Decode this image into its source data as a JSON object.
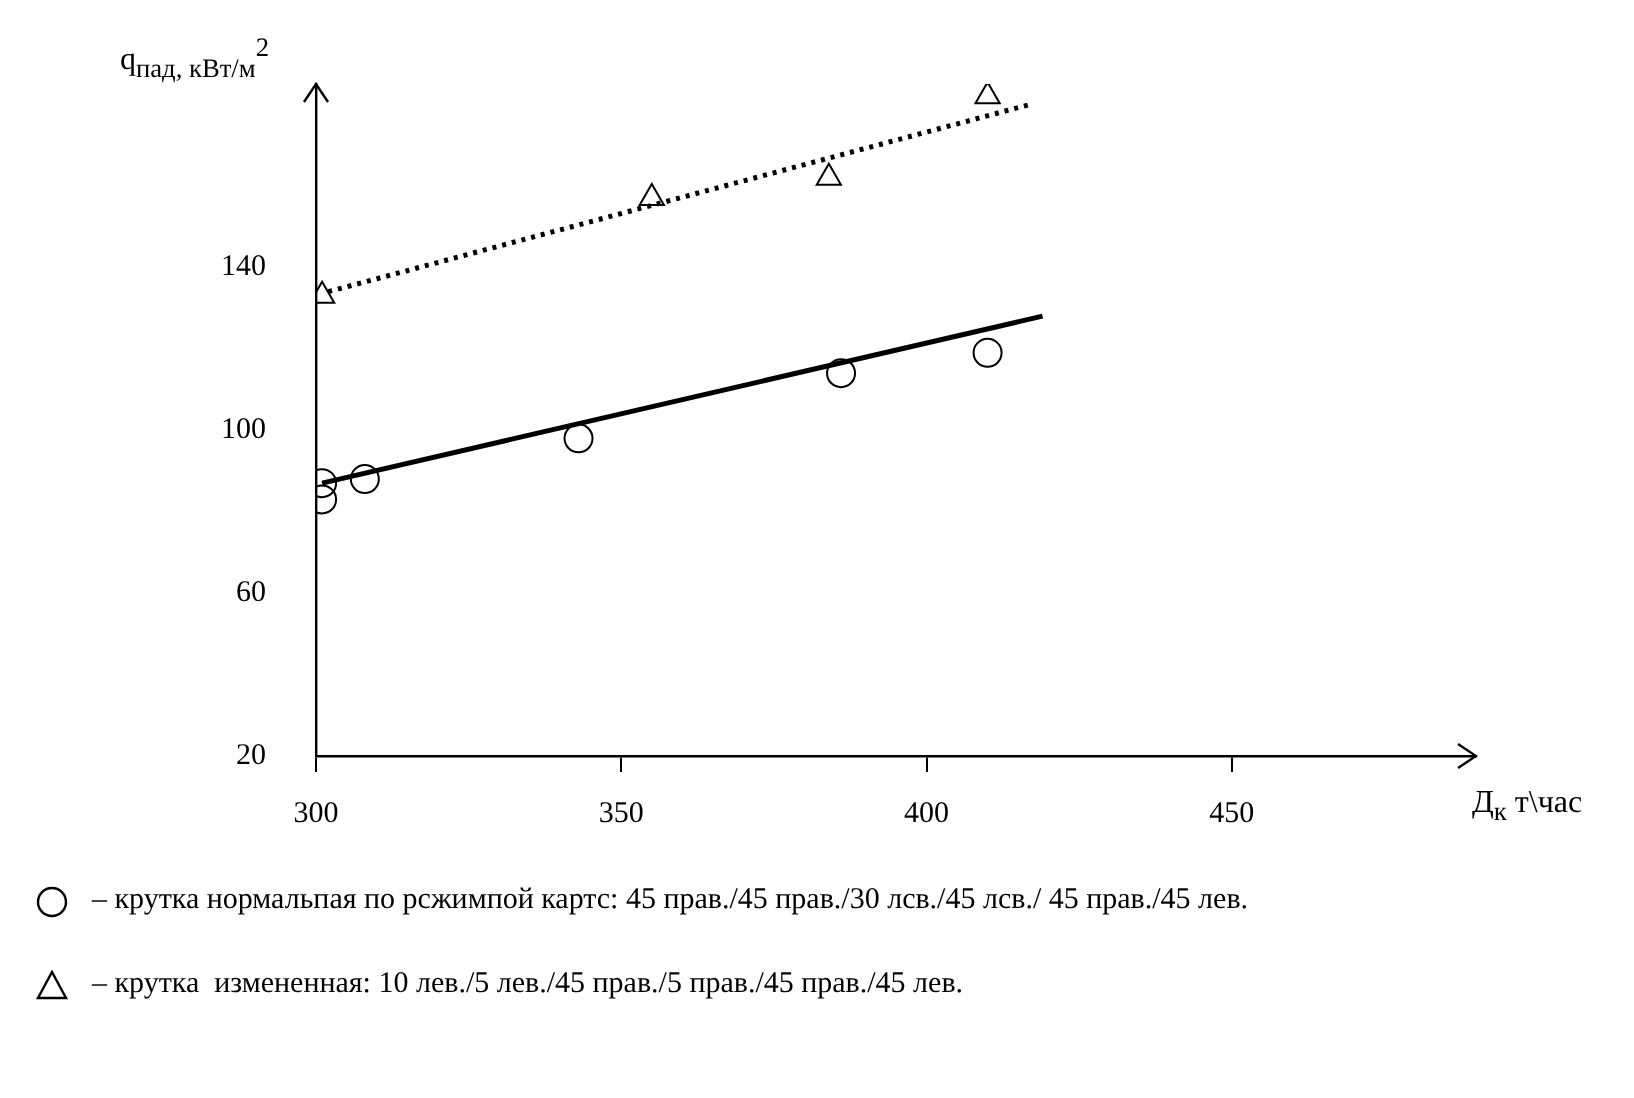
{
  "chart_data": {
    "type": "scatter",
    "xlabel": "Д$_{к}$ т\\час",
    "ylabel": "q$_{пад, кВт/м}$$^{2}$",
    "xlim": [
      300,
      490
    ],
    "ylim": [
      20,
      185
    ],
    "xticks": [
      300,
      350,
      400,
      450
    ],
    "yticks": [
      20,
      60,
      100,
      140
    ],
    "grid": false,
    "legend": "bottom",
    "series": [
      {
        "name": "– крутка нормальпая по рсжимпой картс: 45 прав./45 прав./30 лсв./45 лсв./ 45 прав./45 лев.",
        "color": "#000000",
        "marker": "circle",
        "x": [
          301,
          301,
          308,
          343,
          386,
          410
        ],
        "values": [
          87,
          83,
          88,
          98,
          114,
          119
        ]
      },
      {
        "name": "– крутка  измененная: 10 лев./5 лев./45 прав./5 прав./45 прав./45 лев.",
        "color": "#000000",
        "marker": "triangle",
        "x": [
          301,
          355,
          384,
          410
        ],
        "values": [
          133,
          157,
          162,
          182
        ]
      },
      {
        "type": "line",
        "color": "#000000",
        "line_style": "solid",
        "x": [
          301,
          419
        ],
        "values": [
          87,
          128
        ]
      },
      {
        "type": "line",
        "color": "#000000",
        "line_style": "dotted",
        "x": [
          302,
          417
        ],
        "values": [
          134,
          180
        ]
      }
    ]
  }
}
